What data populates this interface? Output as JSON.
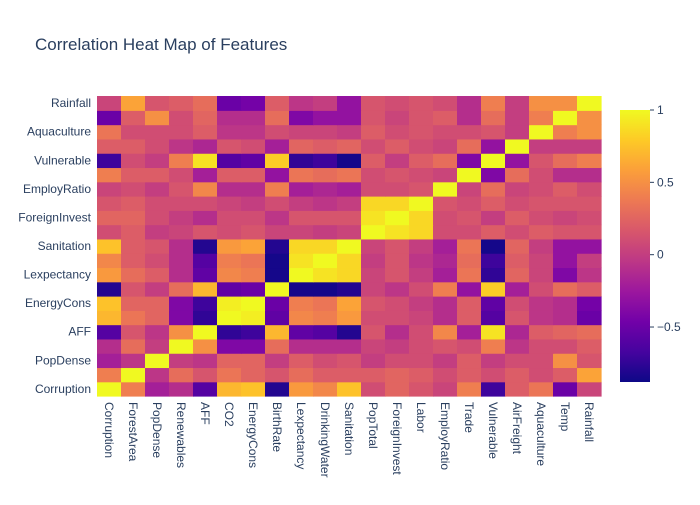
{
  "chart_data": {
    "type": "heatmap",
    "title": "Correlation Heat Map of Features",
    "labels": [
      "Corruption",
      "ForestArea",
      "PopDense",
      "Renewables",
      "AFF",
      "CO2",
      "EnergyCons",
      "BirthRate",
      "Lexpectancy",
      "DrinkingWater",
      "Sanitation",
      "PopTotal",
      "ForeignInvest",
      "Labor",
      "EmployRatio",
      "Trade",
      "Vulnerable",
      "AirFreight",
      "Aquaculture",
      "Temp",
      "Rainfall"
    ],
    "y_tick_labels": [
      "Rainfall",
      "Aquaculture",
      "Vulnerable",
      "EmployRatio",
      "ForeignInvest",
      "Sanitation",
      "Lexpectancy",
      "EnergyCons",
      "AFF",
      "PopDense",
      "Corruption"
    ],
    "colorbar": {
      "min": -0.88,
      "max": 1,
      "ticks": [
        1,
        0.5,
        0,
        -0.5
      ],
      "tick_labels": [
        "1",
        "0.5",
        "0",
        "−0.5"
      ]
    },
    "colorscale": [
      "#0d0887",
      "#46039f",
      "#7201a8",
      "#9c179e",
      "#bd3786",
      "#d8576b",
      "#ed7953",
      "#fb9f3a",
      "#fdca26",
      "#f0f921"
    ],
    "values": [
      [
        1.0,
        0.4,
        -0.2,
        -0.1,
        -0.6,
        0.7,
        0.75,
        -0.8,
        0.55,
        0.45,
        0.75,
        0.1,
        0.25,
        0.15,
        0.05,
        0.4,
        -0.7,
        0.2,
        0.35,
        -0.5,
        0.05
      ],
      [
        0.4,
        1.0,
        -0.05,
        0.3,
        0.15,
        0.35,
        0.25,
        0.15,
        0.3,
        0.2,
        0.2,
        0.2,
        0.25,
        0.2,
        0.1,
        0.2,
        0.1,
        0.2,
        0.1,
        0.2,
        0.6
      ],
      [
        -0.2,
        -0.05,
        1.0,
        0.0,
        -0.05,
        0.25,
        0.25,
        0.0,
        0.2,
        0.1,
        0.15,
        0.0,
        0.1,
        0.1,
        0.0,
        0.2,
        0.0,
        0.1,
        0.1,
        0.5,
        0.15
      ],
      [
        -0.1,
        0.3,
        0.0,
        1.0,
        0.5,
        -0.4,
        -0.4,
        0.3,
        -0.1,
        -0.1,
        -0.1,
        0.05,
        0.0,
        0.1,
        0.15,
        0.1,
        0.4,
        -0.05,
        0.1,
        0.1,
        0.2
      ],
      [
        -0.6,
        0.15,
        -0.05,
        0.5,
        1.0,
        -0.75,
        -0.7,
        0.7,
        -0.55,
        -0.6,
        -0.8,
        0.15,
        -0.1,
        0.1,
        0.45,
        -0.2,
        0.9,
        -0.15,
        0.2,
        0.25,
        0.3
      ],
      [
        0.7,
        0.35,
        0.25,
        -0.4,
        -0.75,
        1.0,
        0.95,
        -0.55,
        0.45,
        0.4,
        0.55,
        0.1,
        0.1,
        0.05,
        -0.1,
        0.2,
        -0.6,
        0.15,
        -0.05,
        -0.1,
        -0.5
      ],
      [
        0.75,
        0.25,
        0.25,
        -0.4,
        -0.7,
        0.95,
        1.0,
        -0.5,
        0.4,
        0.35,
        0.6,
        0.15,
        0.1,
        0.0,
        -0.1,
        0.2,
        -0.55,
        0.1,
        -0.05,
        -0.1,
        -0.45
      ],
      [
        -0.8,
        0.15,
        0.0,
        0.3,
        0.7,
        -0.55,
        -0.5,
        1.0,
        -0.85,
        -0.85,
        -0.8,
        0.05,
        -0.05,
        0.1,
        0.4,
        -0.3,
        0.8,
        -0.2,
        0.1,
        0.3,
        0.2
      ],
      [
        0.55,
        0.3,
        0.2,
        -0.1,
        -0.55,
        0.45,
        0.4,
        -0.85,
        1.0,
        0.9,
        0.85,
        0.05,
        0.15,
        0.0,
        -0.2,
        0.35,
        -0.75,
        0.25,
        0.05,
        -0.4,
        -0.05
      ],
      [
        0.45,
        0.2,
        0.1,
        -0.1,
        -0.6,
        0.4,
        0.35,
        -0.85,
        0.9,
        1.0,
        0.85,
        0.0,
        0.15,
        -0.05,
        -0.15,
        0.3,
        -0.7,
        0.2,
        0.05,
        -0.3,
        0.0
      ],
      [
        0.75,
        0.2,
        0.15,
        -0.1,
        -0.8,
        0.55,
        0.6,
        -0.8,
        0.85,
        0.85,
        1.0,
        0.05,
        0.15,
        0.0,
        -0.2,
        0.35,
        -0.85,
        0.25,
        0.0,
        -0.3,
        -0.3
      ],
      [
        0.1,
        0.2,
        0.0,
        0.05,
        0.15,
        0.1,
        0.15,
        0.05,
        0.05,
        0.0,
        0.05,
        1.0,
        0.9,
        0.85,
        0.1,
        0.1,
        0.2,
        0.1,
        0.2,
        0.15,
        0.15
      ],
      [
        0.25,
        0.25,
        0.1,
        0.0,
        -0.1,
        0.1,
        0.1,
        -0.05,
        0.15,
        0.15,
        0.15,
        0.9,
        1.0,
        0.85,
        0.1,
        0.15,
        0.0,
        0.2,
        0.1,
        0.05,
        0.1
      ],
      [
        0.15,
        0.2,
        0.1,
        0.1,
        0.1,
        0.05,
        0.0,
        0.1,
        0.0,
        -0.05,
        0.0,
        0.85,
        0.85,
        1.0,
        0.15,
        0.1,
        0.2,
        0.1,
        0.15,
        0.15,
        0.15
      ],
      [
        0.05,
        0.1,
        0.0,
        0.15,
        0.45,
        -0.1,
        -0.1,
        0.4,
        -0.2,
        -0.15,
        -0.2,
        0.1,
        0.1,
        0.15,
        1.0,
        0.05,
        0.3,
        0.05,
        0.1,
        0.2,
        0.1
      ],
      [
        0.4,
        0.2,
        0.2,
        0.1,
        -0.2,
        0.2,
        0.2,
        -0.3,
        0.35,
        0.3,
        0.35,
        0.1,
        0.15,
        0.1,
        0.05,
        1.0,
        -0.4,
        0.3,
        0.1,
        -0.1,
        -0.1
      ],
      [
        -0.7,
        0.1,
        0.0,
        0.4,
        0.9,
        -0.6,
        -0.55,
        0.8,
        -0.75,
        -0.7,
        -0.85,
        0.2,
        0.0,
        0.2,
        0.3,
        -0.4,
        1.0,
        -0.3,
        0.15,
        0.3,
        0.4
      ],
      [
        0.2,
        0.2,
        0.1,
        -0.05,
        -0.15,
        0.15,
        0.1,
        -0.2,
        0.25,
        0.2,
        0.25,
        0.1,
        0.2,
        0.1,
        0.05,
        0.3,
        -0.3,
        1.0,
        0.0,
        0.0,
        0.0
      ],
      [
        0.35,
        0.1,
        0.1,
        0.1,
        0.2,
        -0.05,
        -0.05,
        0.1,
        0.05,
        0.05,
        0.0,
        0.2,
        0.1,
        0.15,
        0.1,
        0.1,
        0.15,
        0.0,
        1.0,
        0.4,
        0.5
      ],
      [
        -0.5,
        0.2,
        0.5,
        0.1,
        0.25,
        -0.1,
        -0.1,
        0.3,
        -0.4,
        -0.3,
        -0.3,
        0.15,
        0.05,
        0.15,
        0.2,
        -0.1,
        0.3,
        0.0,
        0.4,
        1.0,
        0.5
      ],
      [
        0.05,
        0.6,
        0.15,
        0.2,
        0.3,
        -0.5,
        -0.45,
        0.2,
        -0.05,
        0.0,
        -0.3,
        0.15,
        0.1,
        0.15,
        0.1,
        -0.1,
        0.4,
        0.0,
        0.5,
        0.5,
        1.0
      ]
    ]
  }
}
